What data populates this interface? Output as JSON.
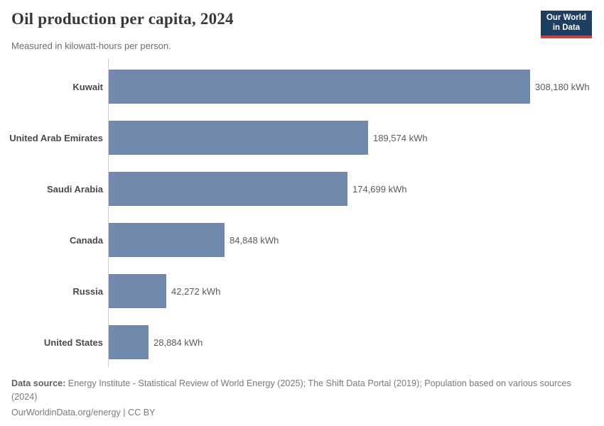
{
  "logo": {
    "line1": "Our World",
    "line2": "in Data",
    "bg_color": "#1d3d63",
    "accent_color": "#d73c3c"
  },
  "chart_data": {
    "type": "bar",
    "orientation": "horizontal",
    "title": "Oil production per capita, 2024",
    "subtitle": "Measured in kilowatt-hours per person.",
    "categories": [
      "Kuwait",
      "United Arab Emirates",
      "Saudi Arabia",
      "Canada",
      "Russia",
      "United States"
    ],
    "values": [
      308180,
      189574,
      174699,
      84848,
      42272,
      28884
    ],
    "value_labels": [
      "308,180 kWh",
      "189,574 kWh",
      "174,699 kWh",
      "84,848 kWh",
      "42,272 kWh",
      "28,884 kWh"
    ],
    "unit": "kWh",
    "xlabel": "",
    "ylabel": "",
    "xlim": [
      0,
      308180
    ],
    "grid": false,
    "legend": false,
    "bar_color": "#7189ac",
    "axis_color": "#cfcfcf"
  },
  "footer": {
    "data_source_label": "Data source:",
    "data_source_line1": "Energy Institute - Statistical Review of World Energy (2025); The Shift Data Portal (2019); Population based on various sources",
    "data_source_line2": "(2024)",
    "permalink": "OurWorldinData.org/energy | CC BY"
  }
}
